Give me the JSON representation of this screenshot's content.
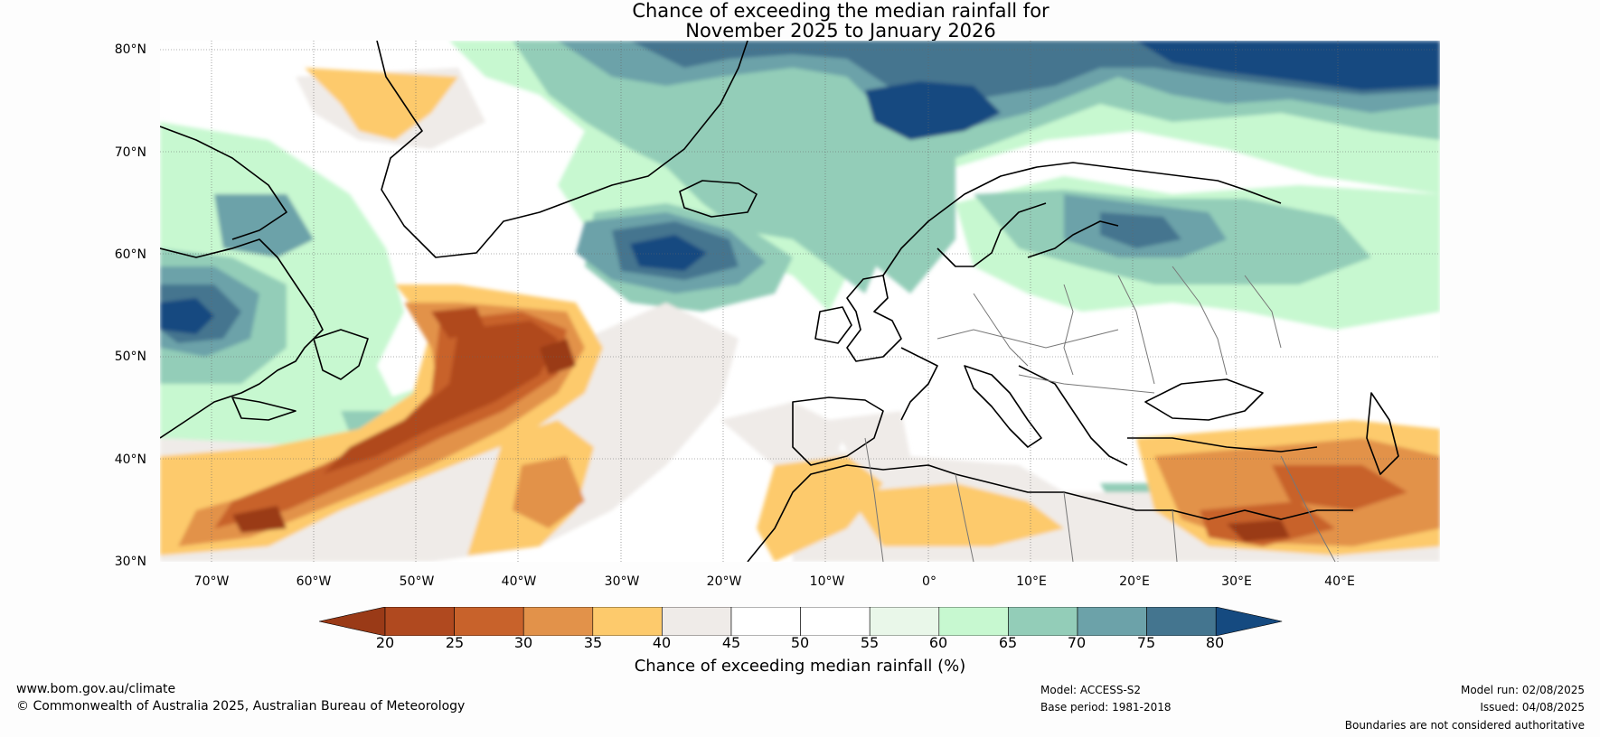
{
  "title": {
    "line1": "Chance of exceeding the median rainfall for",
    "line2": "November 2025 to January 2026"
  },
  "map": {
    "lat_labels": [
      "80°N",
      "70°N",
      "60°N",
      "50°N",
      "40°N",
      "30°N"
    ],
    "lon_labels": [
      "70°W",
      "60°W",
      "50°W",
      "40°W",
      "30°W",
      "20°W",
      "10°W",
      "0°",
      "10°E",
      "20°E",
      "30°E",
      "40°E"
    ],
    "lat_range": [
      30,
      81
    ],
    "lon_range": [
      -75,
      50
    ],
    "gridlines": true,
    "coastlines": true,
    "country_borders": true
  },
  "colorbar": {
    "label": "Chance of exceeding median rainfall (%)",
    "ticks": [
      "20",
      "25",
      "30",
      "35",
      "40",
      "45",
      "50",
      "55",
      "60",
      "65",
      "70",
      "75",
      "80"
    ],
    "colors": {
      "below_20": "#9a3a17",
      "20_25": "#b0491f",
      "25_30": "#c8622b",
      "30_35": "#e2924a",
      "35_40": "#fdca6c",
      "40_45": "#efebe8",
      "45_50": "#ffffff",
      "50_55": "#ffffff",
      "55_60": "#e9f7e9",
      "60_65": "#c7f8d0",
      "65_70": "#93cdb8",
      "70_75": "#6ca2a9",
      "75_80": "#44758f",
      "above_80": "#154a80"
    },
    "extend": "both"
  },
  "footer": {
    "website": "www.bom.gov.au/climate",
    "copyright": "© Commonwealth of Australia 2025, Australian Bureau of Meteorology",
    "model": "Model: ACCESS-S2",
    "base_period": "Base period: 1981-2018",
    "model_run": "Model run: 02/08/2025",
    "issued": "Issued: 04/08/2025",
    "disclaimer": "Boundaries are not considered authoritative"
  }
}
